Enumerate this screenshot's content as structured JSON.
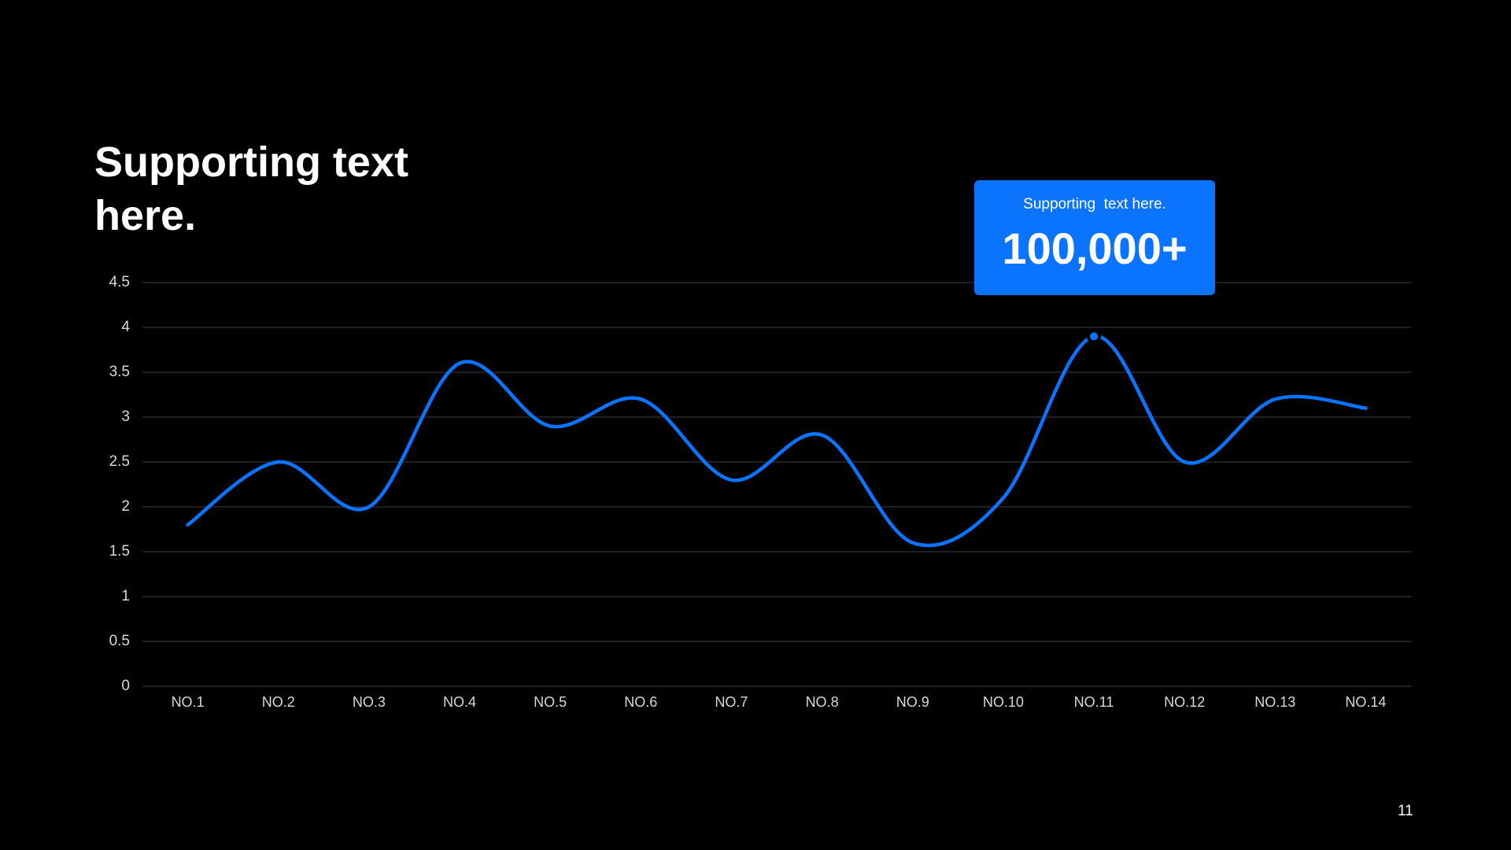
{
  "chart_data": {
    "type": "line",
    "title": "Supporting text here.",
    "categories": [
      "NO.1",
      "NO.2",
      "NO.3",
      "NO.4",
      "NO.5",
      "NO.6",
      "NO.7",
      "NO.8",
      "NO.9",
      "NO.10",
      "NO.11",
      "NO.12",
      "NO.13",
      "NO.14"
    ],
    "values": [
      1.8,
      2.5,
      2.0,
      3.6,
      2.9,
      3.2,
      2.3,
      2.8,
      1.6,
      2.1,
      3.9,
      2.5,
      3.2,
      3.1
    ],
    "color": "#0a74ff",
    "smooth": true,
    "ylim": [
      0,
      4.5
    ],
    "yticks": [
      0,
      0.5,
      1,
      1.5,
      2,
      2.5,
      3,
      3.5,
      4,
      4.5
    ],
    "grid": true,
    "annotation": {
      "text": "Supporting  text here.",
      "value_text": "100,000+"
    },
    "page_number": "11"
  }
}
